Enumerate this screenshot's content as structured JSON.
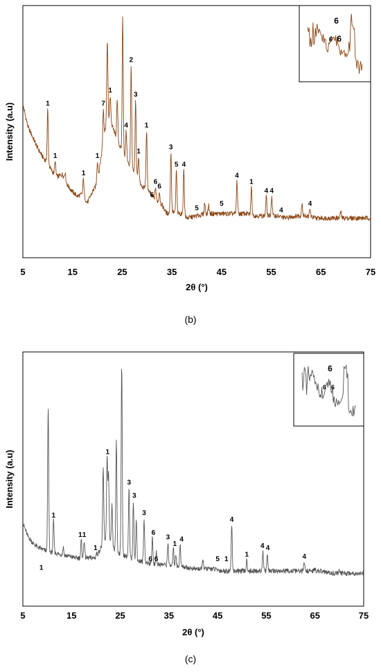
{
  "chart_data": [
    {
      "panel": "(b)",
      "type": "line",
      "xlabel": "2θ (°)",
      "ylabel": "Intensity (a.u)",
      "xlim": [
        5,
        75
      ],
      "ylim": [
        0,
        100
      ],
      "xticks": [
        "5",
        "15",
        "25",
        "35",
        "45",
        "55",
        "65",
        "75"
      ],
      "grid": false,
      "line_color": "#8b4513",
      "baseline": [
        [
          5,
          60
        ],
        [
          6,
          50
        ],
        [
          7,
          45
        ],
        [
          8,
          40
        ],
        [
          9,
          36
        ],
        [
          10,
          33
        ],
        [
          11,
          29
        ],
        [
          12,
          27
        ],
        [
          13,
          28
        ],
        [
          14,
          23
        ],
        [
          15,
          20
        ],
        [
          16,
          18
        ],
        [
          17,
          19
        ],
        [
          18,
          15
        ],
        [
          19,
          20
        ],
        [
          20,
          24
        ],
        [
          21,
          40
        ],
        [
          22,
          55
        ],
        [
          23,
          50
        ],
        [
          24,
          44
        ],
        [
          25,
          38
        ],
        [
          26,
          34
        ],
        [
          27,
          30
        ],
        [
          28,
          27
        ],
        [
          29,
          22
        ],
        [
          30,
          22
        ],
        [
          31,
          18
        ],
        [
          32,
          16
        ],
        [
          33,
          14
        ],
        [
          34,
          10
        ],
        [
          35,
          11
        ],
        [
          36,
          10
        ],
        [
          37,
          10
        ],
        [
          38,
          8
        ],
        [
          40,
          9
        ],
        [
          42,
          10
        ],
        [
          44,
          10
        ],
        [
          46,
          10
        ],
        [
          48,
          10
        ],
        [
          50,
          10
        ],
        [
          52,
          9
        ],
        [
          54,
          9
        ],
        [
          56,
          9
        ],
        [
          58,
          8
        ],
        [
          60,
          9
        ],
        [
          62,
          9
        ],
        [
          64,
          8
        ],
        [
          66,
          8
        ],
        [
          68,
          8
        ],
        [
          70,
          8
        ],
        [
          72,
          8
        ],
        [
          75,
          8
        ]
      ],
      "peaks": [
        [
          10,
          58
        ],
        [
          11.5,
          34
        ],
        [
          13.5,
          29
        ],
        [
          17.2,
          26
        ],
        [
          20,
          34
        ],
        [
          21.2,
          58
        ],
        [
          22,
          90
        ],
        [
          22.6,
          64
        ],
        [
          24,
          62
        ],
        [
          25.1,
          100
        ],
        [
          25.8,
          48
        ],
        [
          26.8,
          78
        ],
        [
          27.7,
          62
        ],
        [
          28.3,
          36
        ],
        [
          29.9,
          48
        ],
        [
          31.7,
          22
        ],
        [
          32.5,
          20
        ],
        [
          34.8,
          38
        ],
        [
          35.9,
          30
        ],
        [
          37.4,
          30
        ],
        [
          41.6,
          15
        ],
        [
          42.4,
          14
        ],
        [
          48.1,
          25
        ],
        [
          51,
          22
        ],
        [
          54,
          18
        ],
        [
          55.1,
          18
        ],
        [
          61.2,
          15
        ],
        [
          62.8,
          12
        ],
        [
          69,
          11
        ]
      ],
      "peak_labels": [
        {
          "x": 10,
          "y": 58,
          "text": "1"
        },
        {
          "x": 11.5,
          "y": 34,
          "text": "1"
        },
        {
          "x": 17.2,
          "y": 26,
          "text": "1"
        },
        {
          "x": 20,
          "y": 34,
          "text": "1"
        },
        {
          "x": 21.2,
          "y": 58,
          "text": "7"
        },
        {
          "x": 22.6,
          "y": 64,
          "text": "1"
        },
        {
          "x": 25.8,
          "y": 48,
          "text": "4"
        },
        {
          "x": 26.8,
          "y": 78,
          "text": "2"
        },
        {
          "x": 27.7,
          "y": 62,
          "text": "3"
        },
        {
          "x": 28.3,
          "y": 36,
          "text": "1"
        },
        {
          "x": 29.9,
          "y": 48,
          "text": "1"
        },
        {
          "x": 31.7,
          "y": 22,
          "text": "6"
        },
        {
          "x": 32.5,
          "y": 20,
          "text": "6"
        },
        {
          "x": 31,
          "y": 16,
          "text": "6"
        },
        {
          "x": 34.8,
          "y": 38,
          "text": "3"
        },
        {
          "x": 35.9,
          "y": 30,
          "text": "5"
        },
        {
          "x": 37.4,
          "y": 30,
          "text": "4"
        },
        {
          "x": 40,
          "y": 10,
          "text": "5"
        },
        {
          "x": 45,
          "y": 12,
          "text": "5"
        },
        {
          "x": 48.1,
          "y": 25,
          "text": "4"
        },
        {
          "x": 51,
          "y": 22,
          "text": "1"
        },
        {
          "x": 54,
          "y": 18,
          "text": "4"
        },
        {
          "x": 55.1,
          "y": 18,
          "text": "4"
        },
        {
          "x": 57,
          "y": 9,
          "text": "4"
        },
        {
          "x": 62.8,
          "y": 12,
          "text": "4"
        }
      ],
      "inset": {
        "labels": [
          "6",
          "6",
          "6"
        ]
      }
    },
    {
      "panel": "(c)",
      "type": "line",
      "xlabel": "2θ (°)",
      "ylabel": "Intensity (a.u)",
      "xlim": [
        5,
        75
      ],
      "ylim": [
        0,
        100
      ],
      "xticks": [
        "5",
        "15",
        "25",
        "35",
        "45",
        "55",
        "65",
        "75"
      ],
      "grid": false,
      "line_color": "#555555",
      "baseline": [
        [
          5,
          27
        ],
        [
          6,
          21
        ],
        [
          7,
          18
        ],
        [
          8,
          16
        ],
        [
          9,
          15
        ],
        [
          10,
          14
        ],
        [
          12,
          13
        ],
        [
          14,
          12
        ],
        [
          16,
          11
        ],
        [
          18,
          11
        ],
        [
          20,
          11
        ],
        [
          22,
          20
        ],
        [
          23,
          18
        ],
        [
          24,
          14
        ],
        [
          25,
          13
        ],
        [
          26,
          12
        ],
        [
          28,
          10
        ],
        [
          30,
          9
        ],
        [
          32,
          8
        ],
        [
          34,
          8
        ],
        [
          36,
          7
        ],
        [
          38,
          7
        ],
        [
          40,
          6
        ],
        [
          42,
          6
        ],
        [
          44,
          6
        ],
        [
          46,
          5
        ],
        [
          48,
          5
        ],
        [
          50,
          5
        ],
        [
          52,
          5
        ],
        [
          54,
          5
        ],
        [
          56,
          5
        ],
        [
          58,
          5
        ],
        [
          60,
          5
        ],
        [
          62,
          5
        ],
        [
          64,
          5
        ],
        [
          66,
          5
        ],
        [
          68,
          4
        ],
        [
          70,
          4
        ],
        [
          72,
          4
        ],
        [
          75,
          4
        ]
      ],
      "peaks": [
        [
          8.8,
          4
        ],
        [
          10.2,
          80
        ],
        [
          11.3,
          28
        ],
        [
          13.3,
          16
        ],
        [
          17,
          19
        ],
        [
          17.6,
          19
        ],
        [
          19.5,
          11
        ],
        [
          20.1,
          13
        ],
        [
          21.5,
          52
        ],
        [
          22.3,
          57
        ],
        [
          22.6,
          49
        ],
        [
          23.3,
          35
        ],
        [
          24.2,
          65
        ],
        [
          25.3,
          100
        ],
        [
          26.8,
          43
        ],
        [
          27.7,
          37
        ],
        [
          28.3,
          28
        ],
        [
          29.9,
          29
        ],
        [
          31.6,
          20
        ],
        [
          32.4,
          14
        ],
        [
          34.8,
          18
        ],
        [
          35.9,
          16
        ],
        [
          36.4,
          13
        ],
        [
          37.3,
          17
        ],
        [
          42,
          10
        ],
        [
          47.9,
          26
        ],
        [
          51,
          10
        ],
        [
          54.3,
          14
        ],
        [
          55.2,
          13
        ],
        [
          62.8,
          9
        ],
        [
          65,
          6
        ],
        [
          70,
          5
        ]
      ],
      "peak_labels": [
        {
          "x": 8.8,
          "y": 4,
          "text": "1"
        },
        {
          "x": 10.2,
          "y": 80,
          "text": ""
        },
        {
          "x": 11.3,
          "y": 28,
          "text": "1"
        },
        {
          "x": 16.8,
          "y": 19,
          "text": "1"
        },
        {
          "x": 17.6,
          "y": 19,
          "text": "1"
        },
        {
          "x": 19.9,
          "y": 13,
          "text": "1"
        },
        {
          "x": 22.4,
          "y": 57,
          "text": "1"
        },
        {
          "x": 26.8,
          "y": 43,
          "text": "3"
        },
        {
          "x": 27.9,
          "y": 37,
          "text": "3"
        },
        {
          "x": 29.9,
          "y": 29,
          "text": "3"
        },
        {
          "x": 31.2,
          "y": 8,
          "text": "6"
        },
        {
          "x": 32.4,
          "y": 8,
          "text": "6"
        },
        {
          "x": 31.8,
          "y": 20,
          "text": "6"
        },
        {
          "x": 34.8,
          "y": 18,
          "text": "3"
        },
        {
          "x": 36.2,
          "y": 15,
          "text": "1"
        },
        {
          "x": 37.6,
          "y": 17,
          "text": "4"
        },
        {
          "x": 45,
          "y": 8,
          "text": "5"
        },
        {
          "x": 46.8,
          "y": 8,
          "text": "1"
        },
        {
          "x": 47.9,
          "y": 26,
          "text": "4"
        },
        {
          "x": 51,
          "y": 10,
          "text": "1"
        },
        {
          "x": 54.2,
          "y": 14,
          "text": "4"
        },
        {
          "x": 55.3,
          "y": 13,
          "text": "4"
        },
        {
          "x": 62.8,
          "y": 9,
          "text": "4"
        }
      ],
      "inset": {
        "labels": [
          "6",
          "6",
          "6"
        ]
      }
    }
  ]
}
